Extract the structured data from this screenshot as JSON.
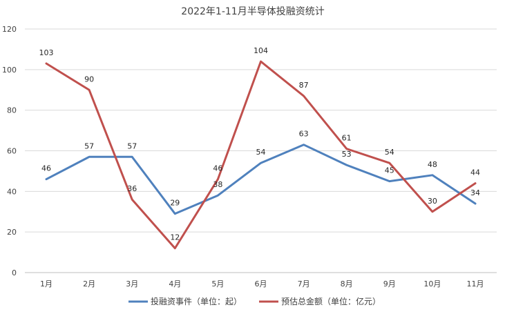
{
  "chart_data": {
    "type": "line",
    "title": "2022年1-11月半导体投融资统计",
    "categories": [
      "1月",
      "2月",
      "3月",
      "4月",
      "5月",
      "6月",
      "7月",
      "8月",
      "9月",
      "10月",
      "11月"
    ],
    "yticks": [
      "0",
      "20",
      "40",
      "60",
      "80",
      "100",
      "120"
    ],
    "ylim": [
      0,
      120
    ],
    "grid": true,
    "legend": "bottom",
    "series": [
      {
        "name": "投融资事件（单位：起）",
        "color": "#4f81bd",
        "values": [
          46,
          57,
          57,
          29,
          38,
          54,
          63,
          53,
          45,
          48,
          34
        ]
      },
      {
        "name": "预估总金额（单位：亿元）",
        "color": "#c0504d",
        "values": [
          103,
          90,
          36,
          12,
          46,
          104,
          87,
          61,
          54,
          30,
          44
        ]
      }
    ]
  }
}
